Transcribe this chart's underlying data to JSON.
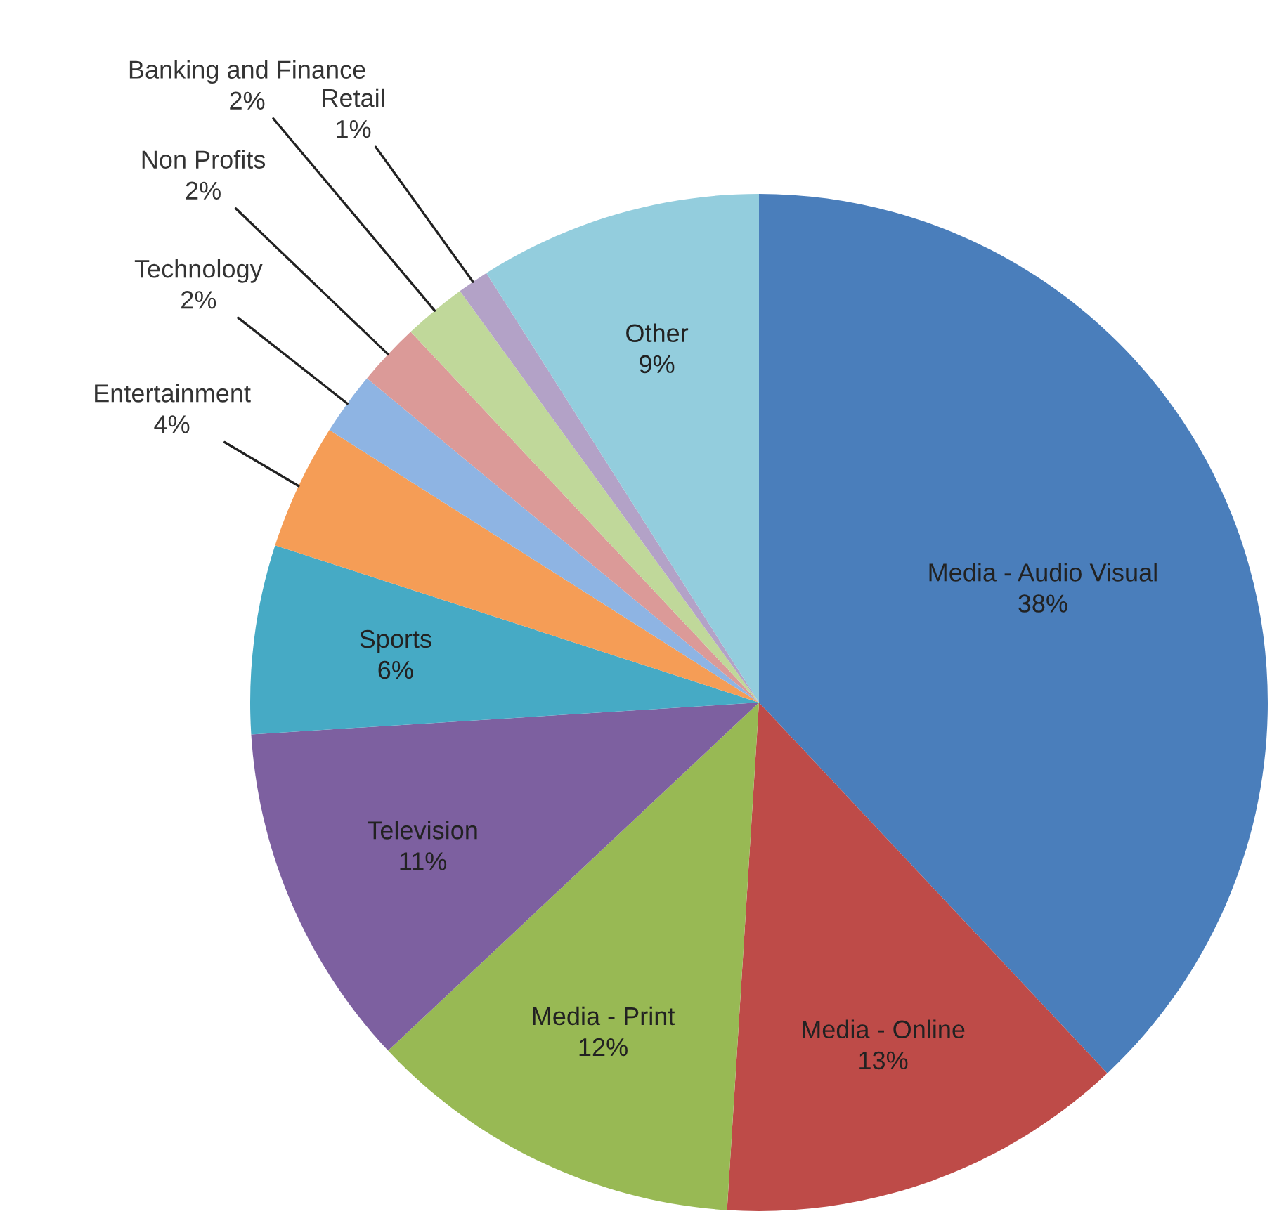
{
  "chart_data": {
    "type": "pie",
    "categories": [
      "Media - Audio Visual",
      "Media - Online",
      "Media - Print",
      "Television",
      "Sports",
      "Entertainment",
      "Technology",
      "Non Profits",
      "Banking and Finance",
      "Retail",
      "Other"
    ],
    "values": [
      38,
      13,
      12,
      11,
      6,
      4,
      2,
      2,
      2,
      1,
      9
    ],
    "value_labels": [
      "38%",
      "13%",
      "12%",
      "11%",
      "6%",
      "4%",
      "2%",
      "2%",
      "2%",
      "1%",
      "9%"
    ],
    "colors": [
      "#4a7ebb",
      "#be4b48",
      "#98b954",
      "#7d60a0",
      "#46aac5",
      "#f59d56",
      "#8eb4e3",
      "#db9a98",
      "#c0d89a",
      "#b3a2c7",
      "#93cddd"
    ]
  }
}
